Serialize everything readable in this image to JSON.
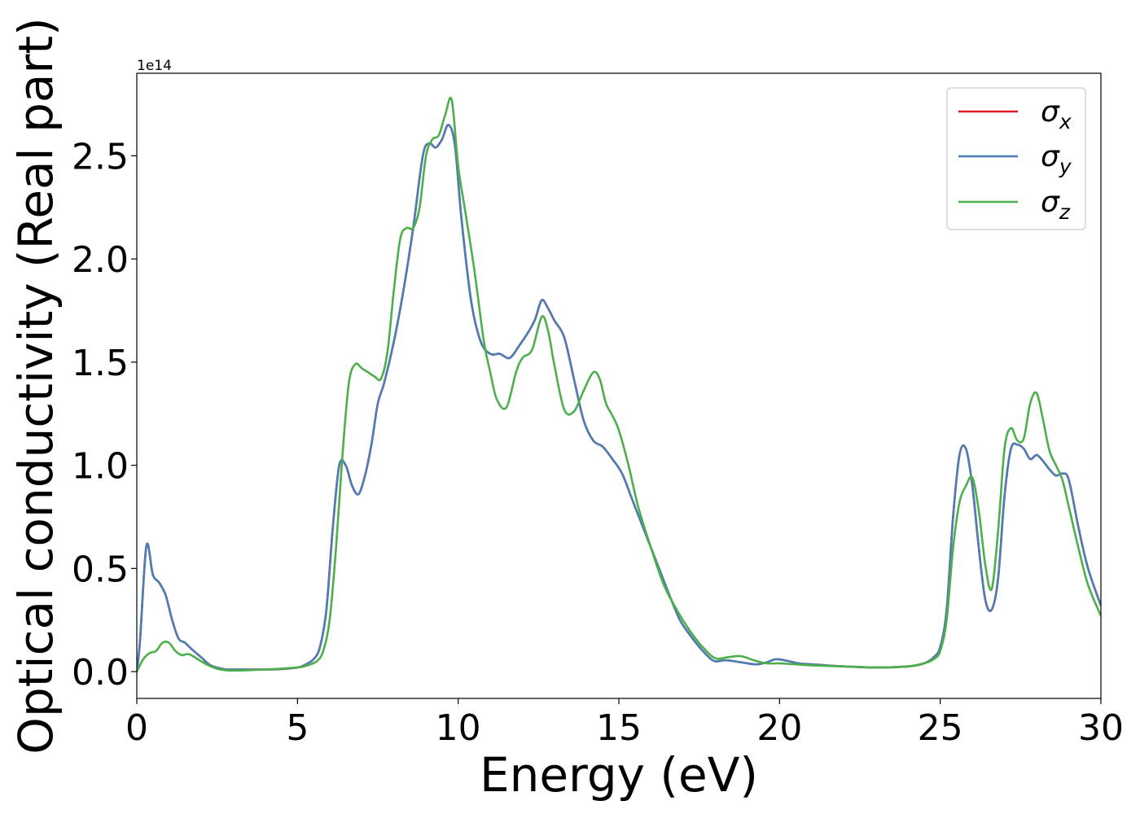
{
  "chart_data": {
    "type": "line",
    "xlabel": "Energy (eV)",
    "ylabel": "Optical conductivity (Real part)",
    "offset_text": "1e14",
    "xlim": [
      0,
      30
    ],
    "ylim": [
      -0.13,
      2.9
    ],
    "xticks": [
      0,
      5,
      10,
      15,
      20,
      25,
      30
    ],
    "xtick_labels": [
      "0",
      "5",
      "10",
      "15",
      "20",
      "25",
      "30"
    ],
    "yticks": [
      0.0,
      0.5,
      1.0,
      1.5,
      2.0,
      2.5
    ],
    "ytick_labels": [
      "0.0",
      "0.5",
      "1.0",
      "1.5",
      "2.0",
      "2.5"
    ],
    "grid": false,
    "legend_position": "top-right",
    "series": [
      {
        "name": "σx",
        "symbol": "σ",
        "subscript": "x",
        "color": "#e41a1c",
        "x": [
          0,
          0.1,
          0.3,
          0.5,
          0.7,
          0.9,
          1.1,
          1.3,
          1.5,
          1.7,
          2.0,
          2.3,
          2.7,
          3.0,
          4.0,
          4.5,
          5.0,
          5.2,
          5.5,
          5.7,
          5.9,
          6.1,
          6.3,
          6.5,
          6.7,
          6.9,
          7.1,
          7.3,
          7.5,
          7.7,
          8.0,
          8.3,
          8.6,
          8.9,
          9.1,
          9.3,
          9.5,
          9.7,
          9.9,
          10.1,
          10.4,
          10.7,
          11.0,
          11.3,
          11.6,
          11.9,
          12.2,
          12.4,
          12.6,
          12.8,
          13.0,
          13.3,
          13.6,
          13.9,
          14.2,
          14.5,
          14.8,
          15.1,
          15.4,
          15.7,
          16.0,
          16.3,
          16.6,
          16.9,
          17.2,
          17.5,
          17.8,
          18.0,
          18.3,
          18.6,
          19.0,
          19.3,
          19.6,
          19.9,
          20.3,
          20.6,
          21.0,
          22.0,
          23.0,
          24.0,
          24.5,
          24.8,
          25.0,
          25.2,
          25.4,
          25.6,
          25.8,
          26.0,
          26.2,
          26.4,
          26.6,
          26.8,
          27.0,
          27.2,
          27.4,
          27.6,
          27.8,
          28.0,
          28.2,
          28.4,
          28.6,
          28.8,
          29.0,
          29.3,
          29.6,
          30.0
        ],
        "values": [
          0.0,
          0.15,
          0.61,
          0.47,
          0.43,
          0.37,
          0.25,
          0.16,
          0.14,
          0.11,
          0.07,
          0.03,
          0.012,
          0.01,
          0.01,
          0.012,
          0.02,
          0.03,
          0.06,
          0.12,
          0.3,
          0.7,
          1.0,
          1.0,
          0.9,
          0.86,
          0.95,
          1.1,
          1.3,
          1.4,
          1.6,
          1.85,
          2.15,
          2.5,
          2.56,
          2.54,
          2.58,
          2.65,
          2.55,
          2.2,
          1.8,
          1.6,
          1.54,
          1.54,
          1.52,
          1.58,
          1.65,
          1.71,
          1.8,
          1.76,
          1.7,
          1.62,
          1.42,
          1.22,
          1.12,
          1.09,
          1.03,
          0.96,
          0.84,
          0.72,
          0.6,
          0.48,
          0.36,
          0.25,
          0.18,
          0.12,
          0.07,
          0.05,
          0.055,
          0.05,
          0.04,
          0.035,
          0.045,
          0.06,
          0.05,
          0.04,
          0.035,
          0.025,
          0.02,
          0.025,
          0.04,
          0.07,
          0.12,
          0.3,
          0.75,
          1.05,
          1.08,
          0.9,
          0.6,
          0.35,
          0.3,
          0.45,
          0.85,
          1.08,
          1.1,
          1.08,
          1.03,
          1.05,
          1.02,
          0.98,
          0.95,
          0.96,
          0.93,
          0.7,
          0.5,
          0.32
        ]
      },
      {
        "name": "σy",
        "symbol": "σ",
        "subscript": "y",
        "color": "#4a7eb5",
        "x": [
          0,
          0.1,
          0.3,
          0.5,
          0.7,
          0.9,
          1.1,
          1.3,
          1.5,
          1.7,
          2.0,
          2.3,
          2.7,
          3.0,
          4.0,
          4.5,
          5.0,
          5.2,
          5.5,
          5.7,
          5.9,
          6.1,
          6.3,
          6.5,
          6.7,
          6.9,
          7.1,
          7.3,
          7.5,
          7.7,
          8.0,
          8.3,
          8.6,
          8.9,
          9.1,
          9.3,
          9.5,
          9.7,
          9.9,
          10.1,
          10.4,
          10.7,
          11.0,
          11.3,
          11.6,
          11.9,
          12.2,
          12.4,
          12.6,
          12.8,
          13.0,
          13.3,
          13.6,
          13.9,
          14.2,
          14.5,
          14.8,
          15.1,
          15.4,
          15.7,
          16.0,
          16.3,
          16.6,
          16.9,
          17.2,
          17.5,
          17.8,
          18.0,
          18.3,
          18.6,
          19.0,
          19.3,
          19.6,
          19.9,
          20.3,
          20.6,
          21.0,
          22.0,
          23.0,
          24.0,
          24.5,
          24.8,
          25.0,
          25.2,
          25.4,
          25.6,
          25.8,
          26.0,
          26.2,
          26.4,
          26.6,
          26.8,
          27.0,
          27.2,
          27.4,
          27.6,
          27.8,
          28.0,
          28.2,
          28.4,
          28.6,
          28.8,
          29.0,
          29.3,
          29.6,
          30.0
        ],
        "values": [
          0.0,
          0.15,
          0.61,
          0.47,
          0.43,
          0.37,
          0.25,
          0.16,
          0.14,
          0.11,
          0.07,
          0.03,
          0.012,
          0.01,
          0.01,
          0.012,
          0.02,
          0.03,
          0.06,
          0.12,
          0.3,
          0.7,
          1.0,
          1.0,
          0.9,
          0.86,
          0.95,
          1.1,
          1.3,
          1.4,
          1.6,
          1.85,
          2.15,
          2.5,
          2.56,
          2.54,
          2.58,
          2.65,
          2.55,
          2.2,
          1.8,
          1.6,
          1.54,
          1.54,
          1.52,
          1.58,
          1.65,
          1.71,
          1.8,
          1.76,
          1.7,
          1.62,
          1.42,
          1.22,
          1.12,
          1.09,
          1.03,
          0.96,
          0.84,
          0.72,
          0.6,
          0.48,
          0.36,
          0.25,
          0.18,
          0.12,
          0.07,
          0.05,
          0.055,
          0.05,
          0.04,
          0.035,
          0.045,
          0.06,
          0.05,
          0.04,
          0.035,
          0.025,
          0.02,
          0.025,
          0.04,
          0.07,
          0.12,
          0.3,
          0.75,
          1.05,
          1.08,
          0.9,
          0.6,
          0.35,
          0.3,
          0.45,
          0.85,
          1.08,
          1.1,
          1.08,
          1.03,
          1.05,
          1.02,
          0.98,
          0.95,
          0.96,
          0.93,
          0.7,
          0.5,
          0.32
        ]
      },
      {
        "name": "σz",
        "symbol": "σ",
        "subscript": "z",
        "color": "#4daf4a",
        "x": [
          0,
          0.2,
          0.4,
          0.6,
          0.8,
          1.0,
          1.2,
          1.4,
          1.6,
          1.8,
          2.0,
          2.3,
          2.6,
          3.0,
          4.0,
          5.0,
          5.3,
          5.6,
          5.8,
          6.0,
          6.2,
          6.4,
          6.6,
          6.8,
          7.0,
          7.2,
          7.4,
          7.6,
          7.8,
          8.0,
          8.2,
          8.4,
          8.6,
          8.8,
          9.0,
          9.2,
          9.4,
          9.6,
          9.8,
          10.0,
          10.2,
          10.5,
          10.8,
          11.0,
          11.2,
          11.5,
          11.8,
          12.0,
          12.3,
          12.6,
          12.8,
          13.0,
          13.3,
          13.6,
          13.9,
          14.2,
          14.4,
          14.6,
          14.8,
          15.0,
          15.3,
          15.6,
          16.0,
          16.4,
          16.8,
          17.2,
          17.6,
          18.0,
          18.4,
          18.8,
          19.2,
          19.6,
          20.0,
          20.5,
          21.0,
          22.0,
          23.0,
          24.0,
          24.5,
          24.8,
          25.0,
          25.2,
          25.4,
          25.6,
          25.8,
          26.0,
          26.2,
          26.4,
          26.6,
          26.8,
          27.0,
          27.2,
          27.4,
          27.6,
          27.8,
          28.0,
          28.2,
          28.4,
          28.6,
          28.8,
          29.0,
          29.3,
          29.6,
          30.0
        ],
        "values": [
          0.0,
          0.06,
          0.09,
          0.1,
          0.14,
          0.14,
          0.1,
          0.08,
          0.085,
          0.07,
          0.05,
          0.025,
          0.01,
          0.005,
          0.01,
          0.02,
          0.03,
          0.05,
          0.1,
          0.25,
          0.6,
          1.05,
          1.4,
          1.49,
          1.47,
          1.45,
          1.43,
          1.42,
          1.55,
          1.85,
          2.1,
          2.15,
          2.15,
          2.25,
          2.5,
          2.58,
          2.6,
          2.7,
          2.77,
          2.45,
          2.25,
          1.95,
          1.6,
          1.45,
          1.32,
          1.28,
          1.45,
          1.52,
          1.56,
          1.72,
          1.65,
          1.48,
          1.27,
          1.26,
          1.36,
          1.45,
          1.42,
          1.3,
          1.24,
          1.17,
          1.0,
          0.8,
          0.6,
          0.42,
          0.3,
          0.2,
          0.12,
          0.065,
          0.07,
          0.075,
          0.055,
          0.04,
          0.04,
          0.035,
          0.03,
          0.025,
          0.02,
          0.025,
          0.04,
          0.06,
          0.1,
          0.25,
          0.6,
          0.82,
          0.9,
          0.94,
          0.78,
          0.52,
          0.4,
          0.68,
          1.08,
          1.18,
          1.12,
          1.13,
          1.3,
          1.35,
          1.22,
          1.07,
          1.0,
          0.93,
          0.8,
          0.6,
          0.42,
          0.27
        ]
      }
    ]
  }
}
